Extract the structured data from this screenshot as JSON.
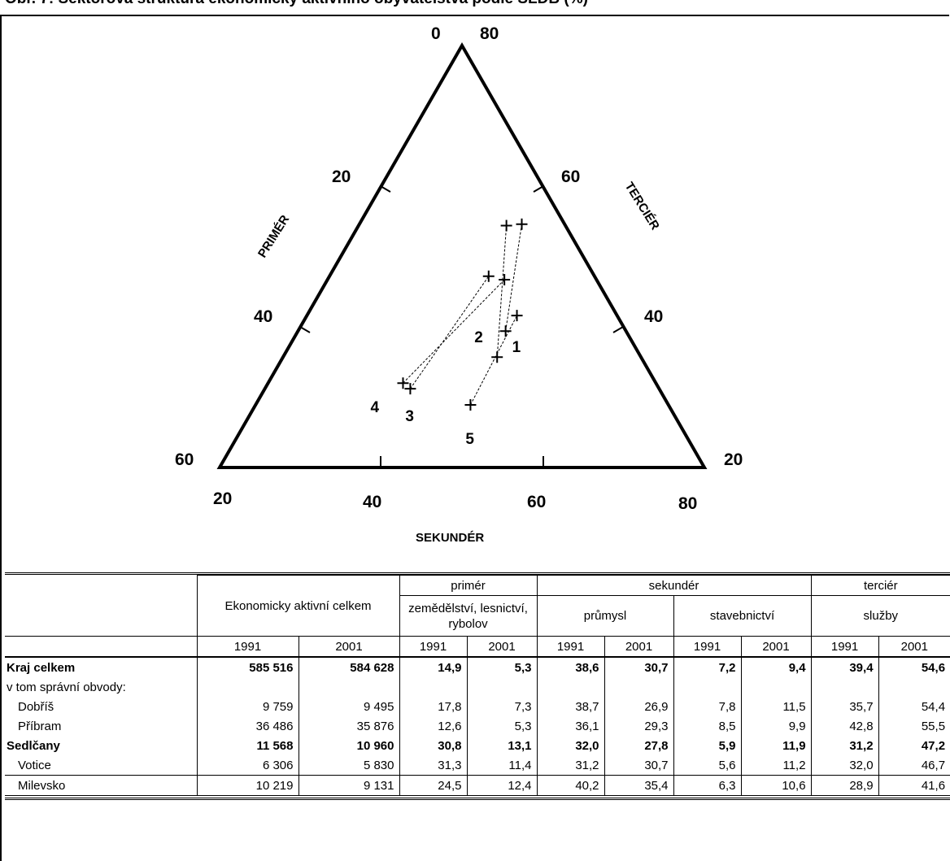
{
  "title": "Obr. 7: Sektorová struktura ekonomicky aktivního obyvatelstva podle SLDB (%)",
  "chart_data": {
    "type": "scatter",
    "subtype": "ternary",
    "axes": {
      "primary": {
        "label": "PRIMÉR",
        "ticks": [
          "0",
          "20",
          "40",
          "60"
        ]
      },
      "secondary": {
        "label": "SEKUNDÉR",
        "ticks": [
          "20",
          "40",
          "60",
          "80"
        ]
      },
      "tertiary": {
        "label": "TERCIÉR",
        "ticks": [
          "80",
          "60",
          "40",
          "20"
        ]
      }
    },
    "series": [
      {
        "label": "1",
        "points": [
          {
            "year": 1991,
            "primary": 14.9,
            "secondary": 45.8,
            "tertiary": 39.4
          },
          {
            "year": 2001,
            "primary": 5.3,
            "secondary": 40.1,
            "tertiary": 54.6
          }
        ]
      },
      {
        "label": "2",
        "points": [
          {
            "year": 1991,
            "primary": 17.8,
            "secondary": 46.5,
            "tertiary": 35.7
          },
          {
            "year": 2001,
            "primary": 7.3,
            "secondary": 38.4,
            "tertiary": 54.4
          }
        ]
      },
      {
        "label": "3",
        "points": [
          {
            "year": 1991,
            "primary": 30.8,
            "secondary": 37.9,
            "tertiary": 31.2
          },
          {
            "year": 2001,
            "primary": 13.1,
            "secondary": 39.7,
            "tertiary": 47.2
          }
        ]
      },
      {
        "label": "4",
        "points": [
          {
            "year": 1991,
            "primary": 31.3,
            "secondary": 36.8,
            "tertiary": 32.0
          },
          {
            "year": 2001,
            "primary": 11.4,
            "secondary": 41.9,
            "tertiary": 46.7
          }
        ]
      },
      {
        "label": "5",
        "points": [
          {
            "year": 1991,
            "primary": 24.5,
            "secondary": 46.5,
            "tertiary": 28.9
          },
          {
            "year": 2001,
            "primary": 12.4,
            "secondary": 46.0,
            "tertiary": 41.6
          }
        ]
      }
    ]
  },
  "table": {
    "header": {
      "ekon": "Ekonomicky aktivní celkem",
      "primer": "primér",
      "primer_sub": "zemědělství, lesnictví, rybolov",
      "sekunder": "sekundér",
      "prumysl": "průmysl",
      "stavebnictvi": "stavebnictví",
      "tercier": "terciér",
      "sluzby": "služby",
      "years": [
        "1991",
        "2001",
        "1991",
        "2001",
        "1991",
        "2001",
        "1991",
        "2001",
        "1991",
        "2001"
      ]
    },
    "rows": [
      {
        "name": "Kraj celkem",
        "bold": true,
        "values": [
          "585 516",
          "584 628",
          "14,9",
          "5,3",
          "38,6",
          "30,7",
          "7,2",
          "9,4",
          "39,4",
          "54,6"
        ]
      },
      {
        "name": "v tom správní obvody:",
        "bold": false,
        "values": [
          "",
          "",
          "",
          "",
          "",
          "",
          "",
          "",
          "",
          ""
        ]
      },
      {
        "name": "Dobříš",
        "bold": false,
        "indent": true,
        "values": [
          "9 759",
          "9 495",
          "17,8",
          "7,3",
          "38,7",
          "26,9",
          "7,8",
          "11,5",
          "35,7",
          "54,4"
        ]
      },
      {
        "name": "Příbram",
        "bold": false,
        "indent": true,
        "values": [
          "36 486",
          "35 876",
          "12,6",
          "5,3",
          "36,1",
          "29,3",
          "8,5",
          "9,9",
          "42,8",
          "55,5"
        ]
      },
      {
        "name": "Sedlčany",
        "bold": true,
        "values": [
          "11 568",
          "10 960",
          "30,8",
          "13,1",
          "32,0",
          "27,8",
          "5,9",
          "11,9",
          "31,2",
          "47,2"
        ]
      },
      {
        "name": "Votice",
        "bold": false,
        "indent": true,
        "values": [
          "6 306",
          "5 830",
          "31,3",
          "11,4",
          "31,2",
          "30,7",
          "5,6",
          "11,2",
          "32,0",
          "46,7"
        ]
      },
      {
        "name": "Milevsko",
        "bold": false,
        "indent": true,
        "values": [
          "10 219",
          "9 131",
          "24,5",
          "12,4",
          "40,2",
          "35,4",
          "6,3",
          "10,6",
          "28,9",
          "41,6"
        ]
      }
    ]
  }
}
